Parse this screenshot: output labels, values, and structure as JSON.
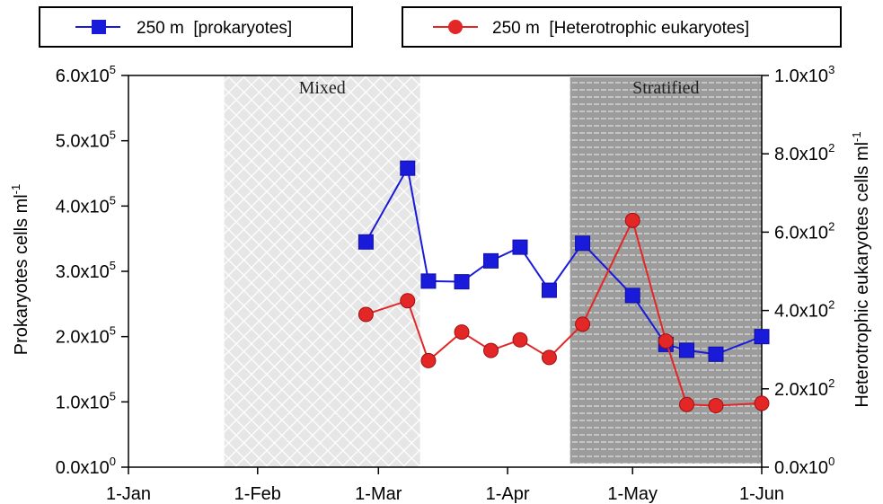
{
  "chart_data": {
    "type": "line",
    "xlabel": "",
    "ylabel": "Prokaryotes cells ml",
    "ylabel_sup": "-1",
    "y2label": "Heterotrophic eukaryotes cells ml",
    "y2label_sup": "-1",
    "x_ticks": [
      "1-Jan",
      "1-Feb",
      "1-Mar",
      "1-Apr",
      "1-May",
      "1-Jun"
    ],
    "xlim": [
      "1-Jan",
      "1-Jun"
    ],
    "ylim": [
      0,
      600000
    ],
    "y2lim": [
      0,
      1000
    ],
    "y_ticks": [
      {
        "mantissa": "0.0x10",
        "exp": "0",
        "value": 0
      },
      {
        "mantissa": "1.0x10",
        "exp": "5",
        "value": 100000
      },
      {
        "mantissa": "2.0x10",
        "exp": "5",
        "value": 200000
      },
      {
        "mantissa": "3.0x10",
        "exp": "5",
        "value": 300000
      },
      {
        "mantissa": "4.0x10",
        "exp": "5",
        "value": 400000
      },
      {
        "mantissa": "5.0x10",
        "exp": "5",
        "value": 500000
      },
      {
        "mantissa": "6.0x10",
        "exp": "5",
        "value": 600000
      }
    ],
    "y2_ticks": [
      {
        "mantissa": "0.0x10",
        "exp": "0",
        "value": 0
      },
      {
        "mantissa": "2.0x10",
        "exp": "2",
        "value": 200
      },
      {
        "mantissa": "4.0x10",
        "exp": "2",
        "value": 400
      },
      {
        "mantissa": "6.0x10",
        "exp": "2",
        "value": 600
      },
      {
        "mantissa": "8.0x10",
        "exp": "2",
        "value": 800
      },
      {
        "mantissa": "1.0x10",
        "exp": "3",
        "value": 1000
      }
    ],
    "periods": [
      {
        "label": "Mixed",
        "start": "2024-01-24",
        "end": "2024-03-11",
        "pattern": "crosshatch"
      },
      {
        "label": "Stratified",
        "start": "2024-04-16",
        "end": "2024-06-01",
        "pattern": "stripes"
      }
    ],
    "series": [
      {
        "name": "250 m  [prokaryotes]",
        "axis": "left",
        "color": "#1a1adb",
        "marker": "square",
        "points": [
          {
            "x": "2024-02-27",
            "y": 345000
          },
          {
            "x": "2024-03-08",
            "y": 458000
          },
          {
            "x": "2024-03-13",
            "y": 285000
          },
          {
            "x": "2024-03-21",
            "y": 284000
          },
          {
            "x": "2024-03-28",
            "y": 316000
          },
          {
            "x": "2024-04-04",
            "y": 337000
          },
          {
            "x": "2024-04-11",
            "y": 271000
          },
          {
            "x": "2024-04-19",
            "y": 343000
          },
          {
            "x": "2024-05-01",
            "y": 263000
          },
          {
            "x": "2024-05-09",
            "y": 188000
          },
          {
            "x": "2024-05-14",
            "y": 179000
          },
          {
            "x": "2024-05-21",
            "y": 173000
          },
          {
            "x": "2024-06-01",
            "y": 200000
          }
        ]
      },
      {
        "name": "250 m  [Heterotrophic eukaryotes]",
        "axis": "right",
        "color": "#e32626",
        "marker": "circle",
        "points": [
          {
            "x": "2024-02-27",
            "y": 390
          },
          {
            "x": "2024-03-08",
            "y": 425
          },
          {
            "x": "2024-03-13",
            "y": 272
          },
          {
            "x": "2024-03-21",
            "y": 345
          },
          {
            "x": "2024-03-28",
            "y": 298
          },
          {
            "x": "2024-04-04",
            "y": 325
          },
          {
            "x": "2024-04-11",
            "y": 280
          },
          {
            "x": "2024-04-19",
            "y": 365
          },
          {
            "x": "2024-05-01",
            "y": 630
          },
          {
            "x": "2024-05-09",
            "y": 322
          },
          {
            "x": "2024-05-14",
            "y": 160
          },
          {
            "x": "2024-05-21",
            "y": 157
          },
          {
            "x": "2024-06-01",
            "y": 163
          }
        ]
      }
    ],
    "grid": false,
    "legend": "top"
  }
}
